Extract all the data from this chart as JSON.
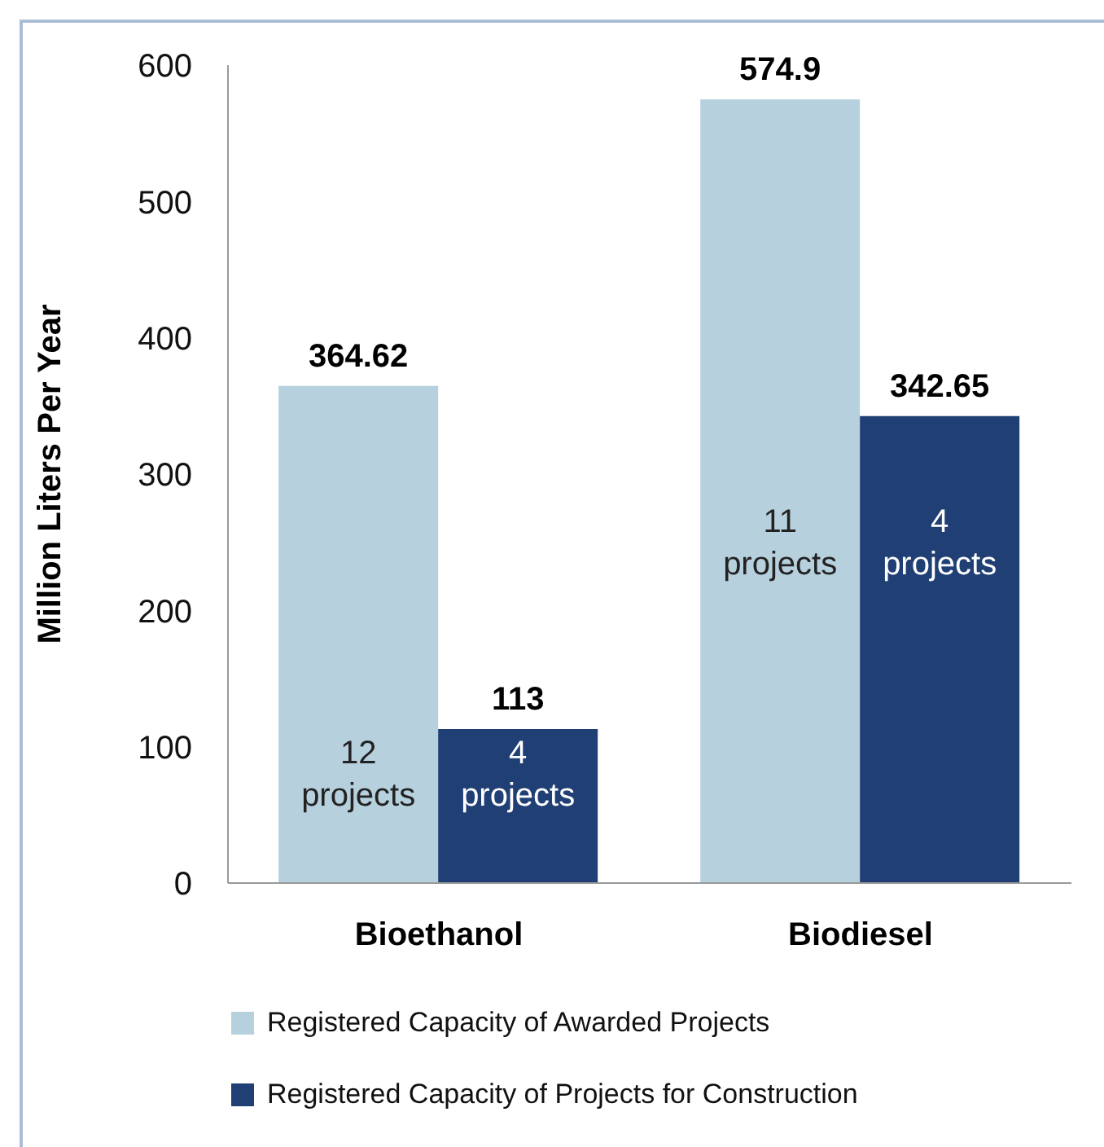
{
  "chart_data": {
    "type": "bar",
    "ylabel": "Million Liters Per Year",
    "categories": [
      "Bioethanol",
      "Biodiesel"
    ],
    "series": [
      {
        "name": "Registered Capacity of Awarded Projects",
        "color": "#b7d0de",
        "values": [
          364.62,
          574.9
        ]
      },
      {
        "name": "Registered Capacity of Projects for Construction",
        "color": "#203f74",
        "values": [
          113,
          342.65
        ]
      }
    ],
    "ylim": [
      0,
      600
    ],
    "yticks": [
      0,
      100,
      200,
      300,
      400,
      500,
      600
    ],
    "grid": false,
    "legend": "bottom",
    "data_labels": true,
    "annotations": [
      {
        "text": "12\nprojects",
        "x": "Bioethanol",
        "y": 78
      },
      {
        "text": "4\nprojects",
        "x": "Bioethanol",
        "y": 78
      },
      {
        "text": "11\nprojects",
        "x": "Biodiesel",
        "y": 248
      },
      {
        "text": "4\nprojects",
        "x": "Biodiesel",
        "y": 248
      }
    ]
  }
}
